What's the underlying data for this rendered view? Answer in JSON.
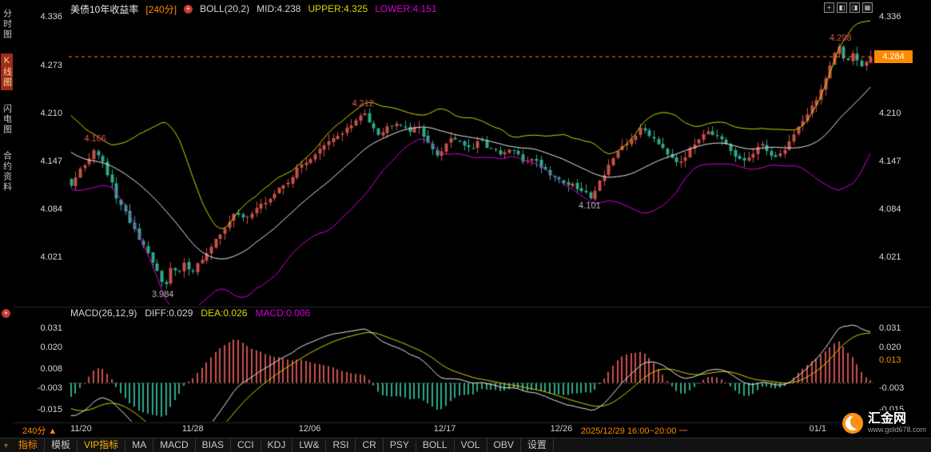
{
  "colors": {
    "up": "#c9504b",
    "down": "#2fa98a",
    "upper": "#d4d400",
    "mid": "#e8e8e8",
    "lower": "#d400d4",
    "accent": "#ff8a00",
    "grid": "#232323",
    "zero": "#666666"
  },
  "sidebar": {
    "items": [
      {
        "label": "分时图",
        "active": false
      },
      {
        "label": "K线图",
        "active": true
      },
      {
        "label": "闪电图",
        "active": false
      },
      {
        "label": "合约资料",
        "active": false
      }
    ]
  },
  "header": {
    "title": "美债10年收益率",
    "period": "[240分]",
    "add_glyph": "+",
    "boll": "BOLL(20,2)",
    "mid": "MID:4.238",
    "upper": "UPPER:4.325",
    "lower": "LOWER:4.151"
  },
  "window_icons": [
    {
      "name": "crosshair-icon",
      "glyph": "+"
    },
    {
      "name": "layout-left-icon",
      "glyph": "◧"
    },
    {
      "name": "layout-right-icon",
      "glyph": "◨"
    },
    {
      "name": "layout-grid-icon",
      "glyph": "▦"
    }
  ],
  "main_axis": {
    "left_ticks": [
      {
        "v": 4.336,
        "label": "4.336"
      },
      {
        "v": 4.273,
        "label": "4.273"
      },
      {
        "v": 4.21,
        "label": "4.210"
      },
      {
        "v": 4.147,
        "label": "4.147"
      },
      {
        "v": 4.084,
        "label": "4.084"
      },
      {
        "v": 4.021,
        "label": "4.021"
      }
    ],
    "right_ticks": [
      {
        "v": 4.336,
        "label": "4.336"
      },
      {
        "v": 4.21,
        "label": "4.210"
      },
      {
        "v": 4.147,
        "label": "4.147"
      },
      {
        "v": 4.084,
        "label": "4.084"
      },
      {
        "v": 4.021,
        "label": "4.021"
      }
    ],
    "current": "4.284"
  },
  "macd_legend": {
    "name": "MACD(26,12,9)",
    "diff": "DIFF:0.029",
    "dea": "DEA:0.026",
    "macd": "MACD:0.006"
  },
  "macd_axis": {
    "left_ticks": [
      {
        "v": 0.031,
        "label": "0.031"
      },
      {
        "v": 0.02,
        "label": "0.020"
      },
      {
        "v": 0.008,
        "label": "0.008"
      },
      {
        "v": -0.003,
        "label": "-0.003"
      },
      {
        "v": -0.015,
        "label": "-0.015"
      }
    ],
    "right_ticks": [
      {
        "v": 0.031,
        "label": "0.031"
      },
      {
        "v": 0.02,
        "label": "0.020"
      },
      {
        "v": -0.003,
        "label": "-0.003"
      },
      {
        "v": -0.015,
        "label": "-0.015"
      }
    ],
    "current": "0.013",
    "current_v": 0.013
  },
  "xaxis": {
    "labels": [
      {
        "label": "11/20",
        "t": 0.005
      },
      {
        "label": "11/28",
        "t": 0.155
      },
      {
        "label": "12/06",
        "t": 0.3
      },
      {
        "label": "12/17",
        "t": 0.468
      },
      {
        "label": "12/26",
        "t": 0.613
      },
      {
        "label": "01/1",
        "t": 0.935
      }
    ],
    "status": "2025/12/29 16:00~20:00 一",
    "status_t": 0.637
  },
  "footer": {
    "period": "240分",
    "period_arrow": "▲",
    "corner_glyph": "▼",
    "tabs": [
      {
        "label": "指标",
        "style": "active"
      },
      {
        "label": "模板",
        "style": ""
      },
      {
        "label": "VIP指标",
        "style": "vip"
      },
      {
        "label": "MA",
        "style": ""
      },
      {
        "label": "MACD",
        "style": ""
      },
      {
        "label": "BIAS",
        "style": ""
      },
      {
        "label": "CCI",
        "style": ""
      },
      {
        "label": "KDJ",
        "style": ""
      },
      {
        "label": "LW&",
        "style": ""
      },
      {
        "label": "RSI",
        "style": ""
      },
      {
        "label": "CR",
        "style": ""
      },
      {
        "label": "PSY",
        "style": ""
      },
      {
        "label": "BOLL",
        "style": ""
      },
      {
        "label": "VOL",
        "style": ""
      },
      {
        "label": "OBV",
        "style": ""
      },
      {
        "label": "设置",
        "style": ""
      }
    ]
  },
  "logo": {
    "name": "汇金网",
    "url": "www.gold678.com"
  },
  "chart_data": {
    "type": "candlestick+macd",
    "title": "美债10年收益率",
    "period_minutes": 240,
    "boll_params": {
      "period": 20,
      "mult": 2,
      "mid": 4.238,
      "upper": 4.325,
      "lower": 4.151
    },
    "macd_params": {
      "fast": 12,
      "slow": 26,
      "signal": 9,
      "diff": 0.029,
      "dea": 0.026,
      "macd": 0.006
    },
    "price_range": [
      3.958,
      4.348
    ],
    "macd_range": [
      -0.022,
      0.036
    ],
    "num_bars": 178,
    "current_price": 4.284,
    "warmup": {
      "count": 20,
      "from": 4.2,
      "to": 4.125
    },
    "close_anchors": [
      [
        0.0,
        4.115
      ],
      [
        0.008,
        4.128
      ],
      [
        0.018,
        4.145
      ],
      [
        0.03,
        4.166
      ],
      [
        0.04,
        4.142
      ],
      [
        0.05,
        4.118
      ],
      [
        0.06,
        4.09
      ],
      [
        0.072,
        4.072
      ],
      [
        0.082,
        4.048
      ],
      [
        0.092,
        4.03
      ],
      [
        0.102,
        4.012
      ],
      [
        0.11,
        3.996
      ],
      [
        0.117,
        3.984
      ],
      [
        0.125,
        4.008
      ],
      [
        0.133,
        3.998
      ],
      [
        0.142,
        4.012
      ],
      [
        0.152,
        4.004
      ],
      [
        0.163,
        4.018
      ],
      [
        0.175,
        4.032
      ],
      [
        0.19,
        4.058
      ],
      [
        0.205,
        4.078
      ],
      [
        0.215,
        4.072
      ],
      [
        0.228,
        4.082
      ],
      [
        0.242,
        4.092
      ],
      [
        0.258,
        4.108
      ],
      [
        0.272,
        4.122
      ],
      [
        0.288,
        4.142
      ],
      [
        0.3,
        4.152
      ],
      [
        0.315,
        4.165
      ],
      [
        0.33,
        4.178
      ],
      [
        0.345,
        4.19
      ],
      [
        0.358,
        4.2
      ],
      [
        0.366,
        4.212
      ],
      [
        0.376,
        4.196
      ],
      [
        0.386,
        4.182
      ],
      [
        0.396,
        4.192
      ],
      [
        0.406,
        4.2
      ],
      [
        0.416,
        4.194
      ],
      [
        0.426,
        4.186
      ],
      [
        0.436,
        4.192
      ],
      [
        0.446,
        4.172
      ],
      [
        0.456,
        4.152
      ],
      [
        0.466,
        4.166
      ],
      [
        0.476,
        4.18
      ],
      [
        0.488,
        4.172
      ],
      [
        0.5,
        4.16
      ],
      [
        0.512,
        4.174
      ],
      [
        0.524,
        4.164
      ],
      [
        0.538,
        4.154
      ],
      [
        0.552,
        4.164
      ],
      [
        0.564,
        4.146
      ],
      [
        0.576,
        4.152
      ],
      [
        0.588,
        4.14
      ],
      [
        0.6,
        4.13
      ],
      [
        0.614,
        4.12
      ],
      [
        0.628,
        4.114
      ],
      [
        0.64,
        4.106
      ],
      [
        0.65,
        4.101
      ],
      [
        0.662,
        4.122
      ],
      [
        0.674,
        4.146
      ],
      [
        0.688,
        4.162
      ],
      [
        0.702,
        4.178
      ],
      [
        0.714,
        4.19
      ],
      [
        0.726,
        4.18
      ],
      [
        0.738,
        4.168
      ],
      [
        0.75,
        4.154
      ],
      [
        0.76,
        4.146
      ],
      [
        0.772,
        4.158
      ],
      [
        0.784,
        4.176
      ],
      [
        0.794,
        4.19
      ],
      [
        0.806,
        4.18
      ],
      [
        0.818,
        4.168
      ],
      [
        0.83,
        4.152
      ],
      [
        0.84,
        4.146
      ],
      [
        0.852,
        4.156
      ],
      [
        0.862,
        4.168
      ],
      [
        0.874,
        4.158
      ],
      [
        0.884,
        4.15
      ],
      [
        0.894,
        4.166
      ],
      [
        0.904,
        4.182
      ],
      [
        0.914,
        4.2
      ],
      [
        0.924,
        4.214
      ],
      [
        0.934,
        4.232
      ],
      [
        0.944,
        4.256
      ],
      [
        0.954,
        4.284
      ],
      [
        0.96,
        4.298
      ],
      [
        0.968,
        4.278
      ],
      [
        0.978,
        4.29
      ],
      [
        0.988,
        4.272
      ],
      [
        1.0,
        4.284
      ]
    ],
    "annotations": [
      {
        "t": 0.033,
        "price": 4.166,
        "label": "4.166",
        "color": "#e05a50",
        "above": true
      },
      {
        "t": 0.366,
        "price": 4.212,
        "label": "4.212",
        "color": "#e05a50",
        "above": true
      },
      {
        "t": 0.96,
        "price": 4.298,
        "label": "4.298",
        "color": "#e05a50",
        "above": true
      },
      {
        "t": 0.117,
        "price": 3.984,
        "label": "3.984",
        "color": "#bdbdbd",
        "above": false
      },
      {
        "t": 0.648,
        "price": 4.101,
        "label": "4.101",
        "color": "#bdbdbd",
        "above": false
      }
    ]
  }
}
